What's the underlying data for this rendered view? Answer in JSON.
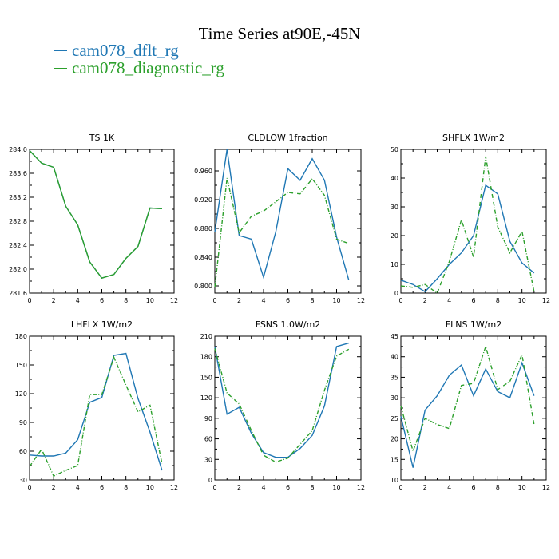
{
  "title": "Time Series at90E,-45N",
  "legend": [
    {
      "label": "cam078_dflt_rg",
      "color": "#1f77b4"
    },
    {
      "label": "cam078_diagnostic_rg",
      "color": "#2ca02c"
    }
  ],
  "chart_data": [
    {
      "type": "line",
      "title": "TS   1K",
      "x": [
        0,
        1,
        2,
        3,
        4,
        5,
        6,
        7,
        8,
        9,
        10,
        11
      ],
      "xlim": [
        0,
        12
      ],
      "xticks": [
        0,
        2,
        4,
        6,
        8,
        10,
        12
      ],
      "ylim": [
        281.6,
        284.0
      ],
      "yticks": [
        "281.6",
        "282.0",
        "282.4",
        "282.8",
        "283.2",
        "283.6",
        "284.0"
      ],
      "series": [
        {
          "name": "cam078_dflt_rg",
          "color": "#1f77b4",
          "dash": "",
          "values": [
            283.98,
            283.77,
            283.7,
            283.05,
            282.74,
            282.12,
            281.85,
            281.91,
            282.18,
            282.38,
            283.02,
            283.01
          ]
        },
        {
          "name": "cam078_diagnostic_rg",
          "color": "#2ca02c",
          "dash": "",
          "values": [
            283.98,
            283.77,
            283.7,
            283.05,
            282.74,
            282.12,
            281.85,
            281.91,
            282.18,
            282.38,
            283.02,
            283.01
          ]
        }
      ]
    },
    {
      "type": "line",
      "title": "CLDLOW   1fraction",
      "x": [
        0,
        1,
        2,
        3,
        4,
        5,
        6,
        7,
        8,
        9,
        10,
        11
      ],
      "xlim": [
        0,
        12
      ],
      "xticks": [
        0,
        2,
        4,
        6,
        8,
        10,
        12
      ],
      "ylim": [
        0.79,
        0.99
      ],
      "yticks": [
        "0.800",
        "0.840",
        "0.880",
        "0.920",
        "0.960"
      ],
      "ytickvals": [
        0.8,
        0.84,
        0.88,
        0.92,
        0.96
      ],
      "series": [
        {
          "name": "cam078_dflt_rg",
          "color": "#1f77b4",
          "dash": "",
          "values": [
            0.875,
            0.99,
            0.87,
            0.865,
            0.812,
            0.875,
            0.963,
            0.947,
            0.977,
            0.947,
            0.868,
            0.808
          ]
        },
        {
          "name": "cam078_diagnostic_rg",
          "color": "#2ca02c",
          "dash": "5,2,1,2",
          "values": [
            0.798,
            0.95,
            0.874,
            0.897,
            0.904,
            0.917,
            0.93,
            0.928,
            0.949,
            0.926,
            0.865,
            0.859
          ]
        }
      ]
    },
    {
      "type": "line",
      "title": "SHFLX   1W/m2",
      "x": [
        0,
        1,
        2,
        3,
        4,
        5,
        6,
        7,
        8,
        9,
        10,
        11
      ],
      "xlim": [
        0,
        12
      ],
      "xticks": [
        0,
        2,
        4,
        6,
        8,
        10,
        12
      ],
      "ylim": [
        0,
        50
      ],
      "yticks": [
        "0",
        "10",
        "20",
        "30",
        "40",
        "50"
      ],
      "series": [
        {
          "name": "cam078_dflt_rg",
          "color": "#1f77b4",
          "dash": "",
          "values": [
            4.5,
            3.0,
            0.5,
            5.0,
            10.0,
            14.0,
            20.0,
            37.5,
            34.5,
            18.0,
            10.5,
            7.0
          ]
        },
        {
          "name": "cam078_diagnostic_rg",
          "color": "#2ca02c",
          "dash": "5,2,1,2",
          "values": [
            2.5,
            2.0,
            3.0,
            0.0,
            11.0,
            25.5,
            12.5,
            47.5,
            23.0,
            14.0,
            21.5,
            0.5
          ]
        }
      ]
    },
    {
      "type": "line",
      "title": "LHFLX   1W/m2",
      "x": [
        0,
        1,
        2,
        3,
        4,
        5,
        6,
        7,
        8,
        9,
        10,
        11
      ],
      "xlim": [
        0,
        12
      ],
      "xticks": [
        0,
        2,
        4,
        6,
        8,
        10,
        12
      ],
      "ylim": [
        30,
        180
      ],
      "yticks": [
        "30",
        "60",
        "90",
        "120",
        "150",
        "180"
      ],
      "series": [
        {
          "name": "cam078_dflt_rg",
          "color": "#1f77b4",
          "dash": "",
          "values": [
            56,
            55,
            55,
            58,
            72,
            111,
            116,
            160,
            162,
            115,
            80,
            40
          ]
        },
        {
          "name": "cam078_diagnostic_rg",
          "color": "#2ca02c",
          "dash": "5,2,1,2",
          "values": [
            44,
            62,
            34,
            40,
            45,
            119,
            119,
            158,
            129,
            101,
            108,
            47
          ]
        }
      ]
    },
    {
      "type": "line",
      "title": "FSNS   1.0W/m2",
      "x": [
        0,
        1,
        2,
        3,
        4,
        5,
        6,
        7,
        8,
        9,
        10,
        11
      ],
      "xlim": [
        0,
        12
      ],
      "xticks": [
        0,
        2,
        4,
        6,
        8,
        10,
        12
      ],
      "ylim": [
        0,
        210
      ],
      "yticks": [
        "0",
        "30",
        "60",
        "90",
        "120",
        "150",
        "180",
        "210"
      ],
      "series": [
        {
          "name": "cam078_dflt_rg",
          "color": "#1f77b4",
          "dash": "",
          "values": [
            195,
            96,
            106,
            68,
            40,
            33,
            33,
            46,
            65,
            108,
            195,
            200
          ]
        },
        {
          "name": "cam078_diagnostic_rg",
          "color": "#2ca02c",
          "dash": "5,2,1,2",
          "values": [
            192,
            127,
            111,
            72,
            36,
            26,
            32,
            52,
            72,
            131,
            181,
            191
          ]
        }
      ]
    },
    {
      "type": "line",
      "title": "FLNS   1W/m2",
      "x": [
        0,
        1,
        2,
        3,
        4,
        5,
        6,
        7,
        8,
        9,
        10,
        11
      ],
      "xlim": [
        0,
        12
      ],
      "xticks": [
        0,
        2,
        4,
        6,
        8,
        10,
        12
      ],
      "ylim": [
        10,
        45
      ],
      "yticks": [
        "10",
        "15",
        "20",
        "25",
        "30",
        "35",
        "40",
        "45"
      ],
      "series": [
        {
          "name": "cam078_dflt_rg",
          "color": "#1f77b4",
          "dash": "",
          "values": [
            25.5,
            13.0,
            27.0,
            30.5,
            35.5,
            38.0,
            30.5,
            37.0,
            31.5,
            30.0,
            38.5,
            30.5
          ]
        },
        {
          "name": "cam078_diagnostic_rg",
          "color": "#2ca02c",
          "dash": "5,2,1,2",
          "values": [
            28.0,
            17.0,
            25.0,
            23.5,
            22.5,
            33.0,
            33.5,
            42.5,
            32.0,
            34.0,
            40.5,
            23.5
          ]
        }
      ]
    }
  ]
}
